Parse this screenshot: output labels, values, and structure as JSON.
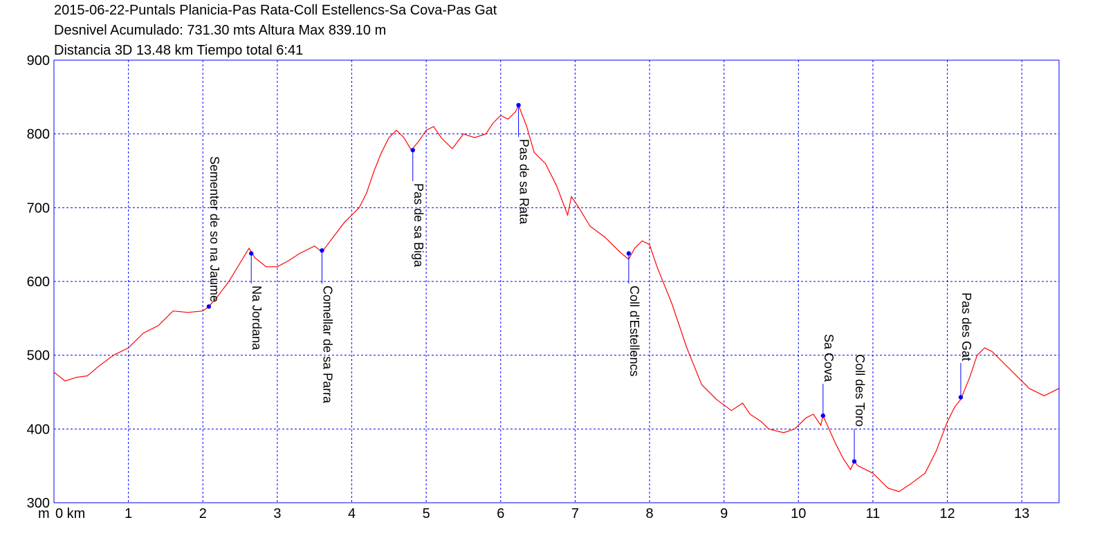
{
  "chart_data": {
    "type": "line",
    "title_lines": [
      "2015-06-22-Puntals Planicia-Pas Rata-Coll Estellencs-Sa Cova-Pas Gat",
      "Desnivel Acumulado: 731.30 mts  Altura Max 839.10 m",
      "Distancia 3D 13.48 km  Tiempo total 6:41"
    ],
    "y_unit_label": "m",
    "x_first_tick_label": "0 km",
    "xlim": [
      0,
      13.5
    ],
    "ylim": [
      300,
      900
    ],
    "x_ticks": [
      0,
      1,
      2,
      3,
      4,
      5,
      6,
      7,
      8,
      9,
      10,
      11,
      12,
      13
    ],
    "x_tick_labels": [
      "0 km",
      "1",
      "2",
      "3",
      "4",
      "5",
      "6",
      "7",
      "8",
      "9",
      "10",
      "11",
      "12",
      "13"
    ],
    "y_ticks": [
      300,
      400,
      500,
      600,
      700,
      800,
      900
    ],
    "y_tick_labels": [
      "300",
      "400",
      "500",
      "600",
      "700",
      "800",
      "900"
    ],
    "grid": true,
    "colors": {
      "profile": "#ff0000",
      "frame": "#0000ff",
      "grid": "#0000ff",
      "waypoint": "#0000ff"
    },
    "series": [
      {
        "x": [
          0,
          0.15,
          0.3,
          0.45,
          0.6,
          0.8,
          1.0,
          1.2,
          1.4,
          1.6,
          1.8,
          2.0,
          2.08,
          2.2,
          2.35,
          2.5,
          2.62,
          2.7,
          2.85,
          3.0,
          3.15,
          3.3,
          3.5,
          3.6,
          3.75,
          3.9,
          4.0,
          4.1,
          4.2,
          4.3,
          4.4,
          4.5,
          4.6,
          4.7,
          4.8,
          4.9,
          5.0,
          5.1,
          5.2,
          5.35,
          5.5,
          5.65,
          5.8,
          5.9,
          6.0,
          6.1,
          6.2,
          6.24,
          6.35,
          6.45,
          6.6,
          6.75,
          6.9,
          6.95,
          7.05,
          7.2,
          7.4,
          7.6,
          7.72,
          7.8,
          7.9,
          8.0,
          8.1,
          8.3,
          8.5,
          8.7,
          8.9,
          9.1,
          9.25,
          9.35,
          9.5,
          9.6,
          9.8,
          9.95,
          10.1,
          10.2,
          10.3,
          10.33,
          10.5,
          10.6,
          10.7,
          10.75,
          10.8,
          11.0,
          11.1,
          11.2,
          11.35,
          11.5,
          11.7,
          11.85,
          12.0,
          12.1,
          12.18,
          12.3,
          12.4,
          12.5,
          12.6,
          12.7,
          12.9,
          13.1,
          13.3,
          13.5
        ],
        "y": [
          477,
          465,
          470,
          472,
          485,
          500,
          510,
          530,
          540,
          560,
          558,
          560,
          566,
          580,
          600,
          625,
          645,
          632,
          620,
          620,
          628,
          638,
          648,
          640,
          660,
          680,
          690,
          700,
          720,
          750,
          775,
          795,
          805,
          795,
          778,
          790,
          805,
          810,
          795,
          780,
          800,
          795,
          800,
          815,
          825,
          820,
          830,
          839,
          810,
          775,
          760,
          730,
          690,
          715,
          700,
          675,
          660,
          640,
          630,
          645,
          655,
          650,
          620,
          570,
          510,
          460,
          440,
          425,
          435,
          420,
          410,
          400,
          395,
          400,
          415,
          420,
          405,
          418,
          380,
          360,
          345,
          356,
          350,
          340,
          330,
          320,
          315,
          325,
          340,
          370,
          410,
          430,
          440,
          470,
          500,
          510,
          505,
          495,
          475,
          455,
          445,
          455
        ]
      }
    ],
    "waypoints": [
      {
        "label": "Sementer de so na Jaume",
        "x": 2.08,
        "y": 566
      },
      {
        "label": "Na Jordana",
        "x": 2.65,
        "y": 638
      },
      {
        "label": "Comellar de sa Parra",
        "x": 3.6,
        "y": 642
      },
      {
        "label": "Pas de sa Biga",
        "x": 4.82,
        "y": 778
      },
      {
        "label": "Pas de sa Rata",
        "x": 6.24,
        "y": 839
      },
      {
        "label": "Coll d'Estellencs",
        "x": 7.72,
        "y": 638
      },
      {
        "label": "Sa Cova",
        "x": 10.33,
        "y": 418
      },
      {
        "label": "Coll des Toro",
        "x": 10.75,
        "y": 356
      },
      {
        "label": "Pas des Gat",
        "x": 12.18,
        "y": 443
      }
    ]
  }
}
